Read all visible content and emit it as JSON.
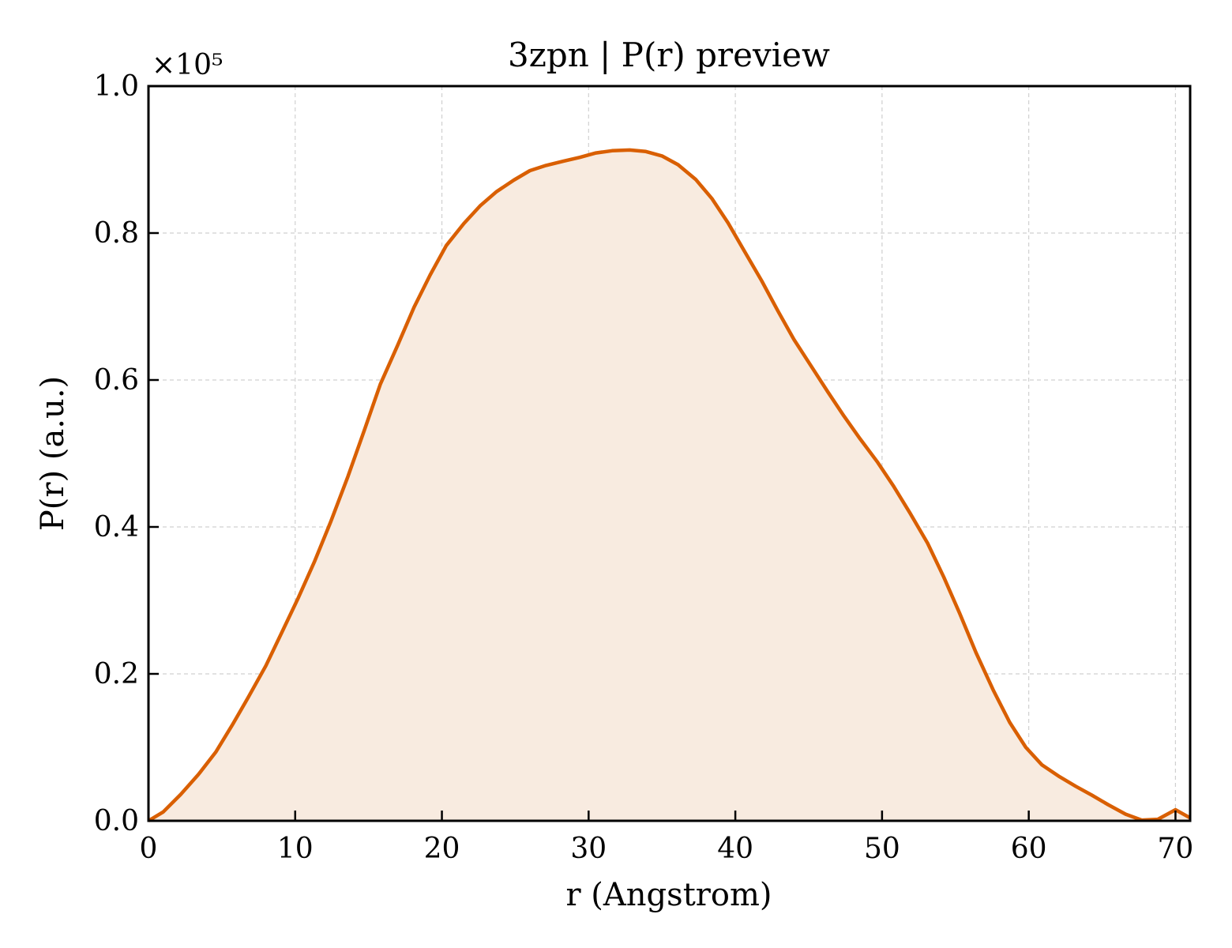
{
  "chart_data": {
    "type": "area",
    "title": "3zpn | P(r) preview",
    "xlabel": "r (Angstrom)",
    "ylabel": "P(r) (a.u.)",
    "y_scale_label": "×10⁵",
    "y_multiplier": 100000,
    "xlim": [
      0,
      71
    ],
    "ylim": [
      0,
      1.0
    ],
    "xticks": [
      0,
      10,
      20,
      30,
      40,
      50,
      60,
      70
    ],
    "xtick_labels": [
      "0",
      "10",
      "20",
      "30",
      "40",
      "50",
      "60",
      "70"
    ],
    "yticks": [
      0.0,
      0.2,
      0.4,
      0.6,
      0.8,
      1.0
    ],
    "ytick_labels": [
      "0.0",
      "0.2",
      "0.4",
      "0.6",
      "0.8",
      "1.0"
    ],
    "grid": true,
    "colors": {
      "line": "#d95f02",
      "fill": "#f8ebe0"
    },
    "series": [
      {
        "x": [
          0,
          1.0,
          2.2,
          3.4,
          4.6,
          5.7,
          6.8,
          8.0,
          9.1,
          10.2,
          11.3,
          12.4,
          13.6,
          14.7,
          15.8,
          17.0,
          18.1,
          19.2,
          20.3,
          21.5,
          22.6,
          23.7,
          24.9,
          26.0,
          27.1,
          28.3,
          29.4,
          30.5,
          31.6,
          32.8,
          33.9,
          35.0,
          36.1,
          37.3,
          38.4,
          39.5,
          40.6,
          41.8,
          42.9,
          44.0,
          45.2,
          46.3,
          47.4,
          48.5,
          49.7,
          50.8,
          51.9,
          53.1,
          54.2,
          55.3,
          56.4,
          57.6,
          58.7,
          59.8,
          60.9,
          62.1,
          63.2,
          64.3,
          65.4,
          66.6,
          67.7,
          68.8,
          70.0,
          71.0
        ],
        "y": [
          0.0,
          0.012,
          0.036,
          0.063,
          0.094,
          0.13,
          0.168,
          0.211,
          0.257,
          0.303,
          0.352,
          0.406,
          0.469,
          0.531,
          0.594,
          0.648,
          0.699,
          0.743,
          0.783,
          0.813,
          0.837,
          0.856,
          0.872,
          0.885,
          0.892,
          0.898,
          0.903,
          0.909,
          0.912,
          0.913,
          0.911,
          0.905,
          0.893,
          0.873,
          0.847,
          0.814,
          0.776,
          0.735,
          0.694,
          0.655,
          0.618,
          0.584,
          0.551,
          0.52,
          0.488,
          0.455,
          0.419,
          0.378,
          0.332,
          0.282,
          0.229,
          0.177,
          0.134,
          0.1,
          0.076,
          0.06,
          0.047,
          0.035,
          0.022,
          0.009,
          0.001,
          0.002,
          0.015,
          0.004
        ]
      }
    ]
  }
}
